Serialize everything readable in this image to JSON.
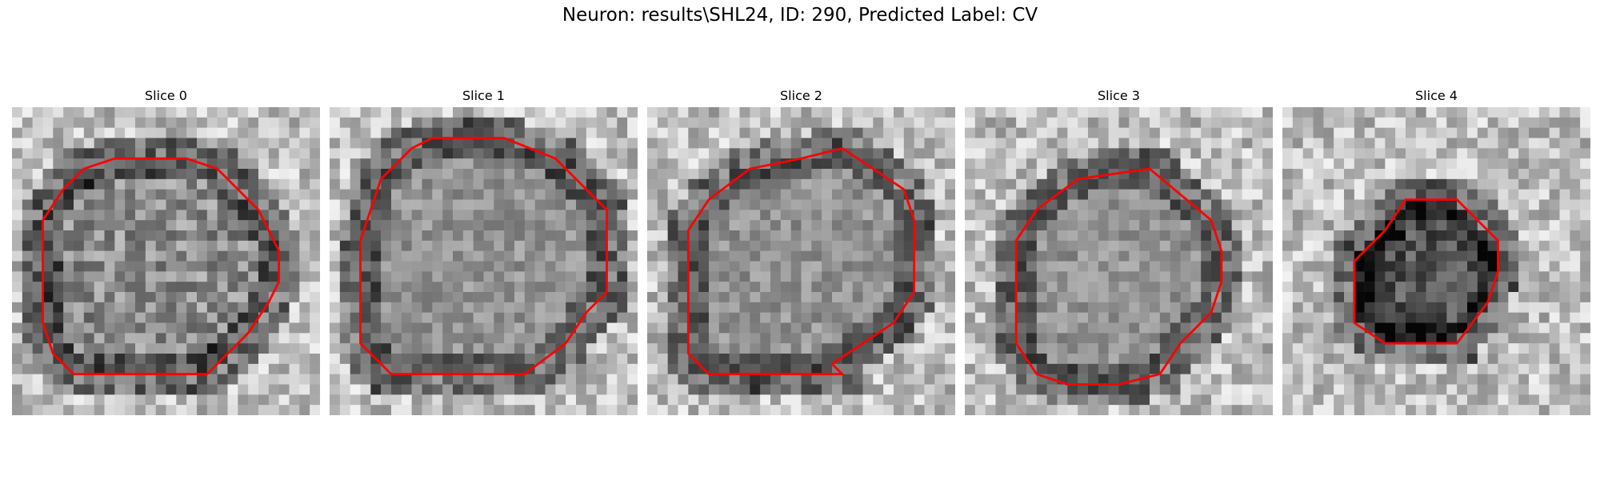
{
  "figure": {
    "title": "Neuron: results\\SHL24, ID: 290, Predicted Label: CV"
  },
  "colors": {
    "contour": "#ff0000",
    "background": "#ffffff"
  },
  "panels": [
    {
      "title": "Slice 0"
    },
    {
      "title": "Slice 1"
    },
    {
      "title": "Slice 2"
    },
    {
      "title": "Slice 3"
    },
    {
      "title": "Slice 4"
    }
  ]
}
